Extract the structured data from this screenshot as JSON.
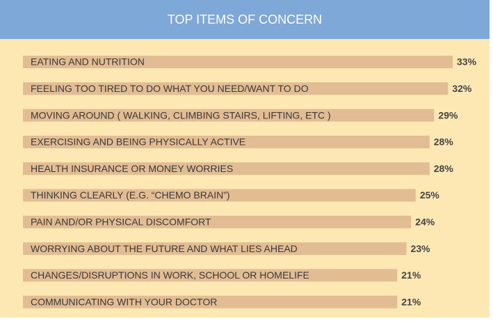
{
  "chart_data": {
    "type": "bar",
    "orientation": "horizontal",
    "title": "TOP ITEMS OF CONCERN",
    "categories": [
      "EATING AND NUTRITION",
      "FEELING TOO TIRED TO DO WHAT YOU NEED/WANT TO DO",
      "MOVING AROUND ( WALKING, CLIMBING STAIRS, LIFTING, ETC )",
      "EXERCISING AND BEING PHYSICALLY ACTIVE",
      "HEALTH INSURANCE OR MONEY WORRIES",
      "THINKING CLEARLY (E.G. “CHEMO BRAIN”)",
      "PAIN AND/OR PHYSICAL DISCOMFORT",
      "WORRYING ABOUT THE FUTURE AND WHAT LIES AHEAD",
      "CHANGES/DISRUPTIONS IN WORK, SCHOOL OR HOMELIFE",
      "COMMUNICATING WITH YOUR DOCTOR"
    ],
    "values": [
      33,
      32,
      29,
      28,
      28,
      25,
      24,
      23,
      21,
      21
    ],
    "value_labels": [
      "33%",
      "32%",
      "29%",
      "28%",
      "28%",
      "25%",
      "24%",
      "23%",
      "21%",
      "21%"
    ],
    "color": "#e2bc93",
    "xlim": [
      -60,
      33
    ]
  }
}
